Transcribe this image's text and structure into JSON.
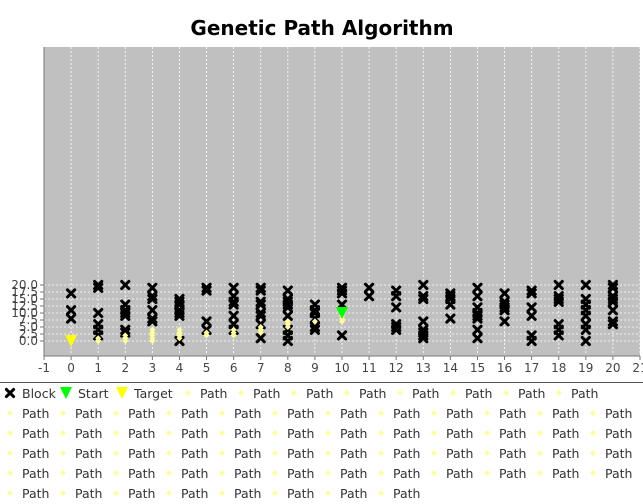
{
  "chart_data": {
    "type": "scatter",
    "title": "Genetic Path Algorithm",
    "xlim": [
      -1,
      21
    ],
    "ylim": [
      -1,
      21
    ],
    "x_ticks": [
      -1,
      0,
      1,
      2,
      3,
      4,
      5,
      6,
      7,
      8,
      9,
      10,
      11,
      12,
      13,
      14,
      15,
      16,
      17,
      18,
      19,
      20,
      21
    ],
    "y_ticks": [
      "0.0",
      "2.5",
      "5.0",
      "7.5",
      "10.0",
      "12.5",
      "15.0",
      "17.5",
      "20.0"
    ],
    "y_tick_values": [
      0,
      2.5,
      5,
      7.5,
      10,
      12.5,
      15,
      17.5,
      20
    ],
    "grid": true,
    "plot_background": "#c0c0c0",
    "series": [
      {
        "name": "Block",
        "marker": "x",
        "color": "#000000",
        "points": [
          [
            0,
            17
          ],
          [
            0,
            11
          ],
          [
            0,
            8
          ],
          [
            1,
            20
          ],
          [
            1,
            19
          ],
          [
            1,
            10
          ],
          [
            1,
            6
          ],
          [
            1,
            4
          ],
          [
            1,
            2
          ],
          [
            2,
            20
          ],
          [
            2,
            13
          ],
          [
            2,
            11
          ],
          [
            2,
            10
          ],
          [
            2,
            9
          ],
          [
            2,
            4
          ],
          [
            2,
            3
          ],
          [
            3,
            19
          ],
          [
            3,
            16
          ],
          [
            3,
            15
          ],
          [
            3,
            11
          ],
          [
            3,
            8
          ],
          [
            3,
            7
          ],
          [
            4,
            15
          ],
          [
            4,
            14
          ],
          [
            4,
            13
          ],
          [
            4,
            11
          ],
          [
            4,
            10
          ],
          [
            4,
            9
          ],
          [
            4,
            0
          ],
          [
            5,
            19
          ],
          [
            5,
            18
          ],
          [
            5,
            7
          ],
          [
            5,
            4
          ],
          [
            6,
            19
          ],
          [
            6,
            16
          ],
          [
            6,
            14
          ],
          [
            6,
            13
          ],
          [
            6,
            9
          ],
          [
            6,
            6
          ],
          [
            6,
            4
          ],
          [
            7,
            19
          ],
          [
            7,
            18
          ],
          [
            7,
            14
          ],
          [
            7,
            13
          ],
          [
            7,
            10
          ],
          [
            7,
            9
          ],
          [
            7,
            6
          ],
          [
            7,
            1
          ],
          [
            8,
            18
          ],
          [
            8,
            15
          ],
          [
            8,
            14
          ],
          [
            8,
            13
          ],
          [
            8,
            12
          ],
          [
            8,
            9
          ],
          [
            8,
            4
          ],
          [
            8,
            2
          ],
          [
            8,
            0
          ],
          [
            9,
            13
          ],
          [
            9,
            11
          ],
          [
            9,
            10
          ],
          [
            9,
            8
          ],
          [
            9,
            5
          ],
          [
            9,
            4
          ],
          [
            10,
            19
          ],
          [
            10,
            18
          ],
          [
            10,
            17
          ],
          [
            10,
            13
          ],
          [
            10,
            2
          ],
          [
            11,
            19
          ],
          [
            11,
            16
          ],
          [
            12,
            18
          ],
          [
            12,
            16
          ],
          [
            12,
            12
          ],
          [
            12,
            6
          ],
          [
            12,
            5
          ],
          [
            12,
            4
          ],
          [
            13,
            20
          ],
          [
            13,
            16
          ],
          [
            13,
            15
          ],
          [
            13,
            7
          ],
          [
            13,
            4
          ],
          [
            13,
            3
          ],
          [
            13,
            2
          ],
          [
            13,
            1
          ],
          [
            14,
            17
          ],
          [
            14,
            16
          ],
          [
            14,
            15
          ],
          [
            14,
            13
          ],
          [
            14,
            8
          ],
          [
            15,
            19
          ],
          [
            15,
            16
          ],
          [
            15,
            12
          ],
          [
            15,
            10
          ],
          [
            15,
            9
          ],
          [
            15,
            8
          ],
          [
            15,
            4
          ],
          [
            15,
            1
          ],
          [
            16,
            17
          ],
          [
            16,
            14
          ],
          [
            16,
            13
          ],
          [
            16,
            12
          ],
          [
            16,
            11
          ],
          [
            16,
            7
          ],
          [
            17,
            18
          ],
          [
            17,
            17
          ],
          [
            17,
            12
          ],
          [
            17,
            9
          ],
          [
            17,
            2
          ],
          [
            17,
            0
          ],
          [
            18,
            20
          ],
          [
            18,
            16
          ],
          [
            18,
            15
          ],
          [
            18,
            14
          ],
          [
            18,
            6
          ],
          [
            18,
            4
          ],
          [
            18,
            2
          ],
          [
            19,
            20
          ],
          [
            19,
            15
          ],
          [
            19,
            13
          ],
          [
            19,
            11
          ],
          [
            19,
            9
          ],
          [
            19,
            6
          ],
          [
            19,
            4
          ],
          [
            19,
            0
          ],
          [
            20,
            20
          ],
          [
            20,
            19
          ],
          [
            20,
            16
          ],
          [
            20,
            15
          ],
          [
            20,
            14
          ],
          [
            20,
            11
          ],
          [
            20,
            7
          ],
          [
            20,
            6
          ]
        ]
      },
      {
        "name": "Start",
        "marker": "triangle-down",
        "color": "#00ff00",
        "points": [
          [
            10,
            10
          ]
        ]
      },
      {
        "name": "Target",
        "marker": "triangle-down",
        "color": "#ffff00",
        "points": [
          [
            0,
            0
          ]
        ]
      },
      {
        "name": "Path",
        "marker": "diamond",
        "color": "#ffff99",
        "points": [
          [
            10,
            9
          ],
          [
            10,
            8
          ],
          [
            10,
            7
          ],
          [
            9,
            7
          ],
          [
            8,
            7
          ],
          [
            8,
            6
          ],
          [
            8,
            5
          ],
          [
            7,
            5
          ],
          [
            7,
            4
          ],
          [
            7,
            3
          ],
          [
            6,
            4
          ],
          [
            6,
            3
          ],
          [
            6,
            2
          ],
          [
            5,
            3
          ],
          [
            5,
            2
          ],
          [
            4,
            4
          ],
          [
            4,
            3
          ],
          [
            4,
            2
          ],
          [
            4,
            1
          ],
          [
            3,
            4
          ],
          [
            3,
            3
          ],
          [
            3,
            2
          ],
          [
            3,
            1
          ],
          [
            3,
            0
          ],
          [
            2,
            2
          ],
          [
            2,
            1
          ],
          [
            2,
            0
          ],
          [
            1,
            1
          ],
          [
            1,
            0
          ]
        ]
      }
    ],
    "legend": {
      "placement": "bottom",
      "entries": [
        "Block",
        "Start",
        "Target",
        "Path",
        "Path",
        "Path",
        "Path",
        "Path",
        "Path",
        "Path",
        "Path",
        "Path",
        "Path",
        "Path",
        "Path",
        "Path",
        "Path",
        "Path",
        "Path",
        "Path",
        "Path",
        "Path",
        "Path",
        "Path",
        "Path",
        "Path",
        "Path",
        "Path",
        "Path",
        "Path",
        "Path",
        "Path",
        "Path",
        "Path",
        "Path",
        "Path",
        "Path",
        "Path",
        "Path",
        "Path",
        "Path",
        "Path",
        "Path",
        "Path",
        "Path",
        "Path",
        "Path",
        "Path",
        "Path",
        "Path",
        "Path",
        "Path",
        "Path",
        "Path",
        "Path",
        "Path",
        "Path",
        "Path",
        "Path",
        "Path",
        "Path",
        "Path",
        "Path",
        "Path",
        "Path",
        "Path",
        "Path"
      ]
    }
  }
}
